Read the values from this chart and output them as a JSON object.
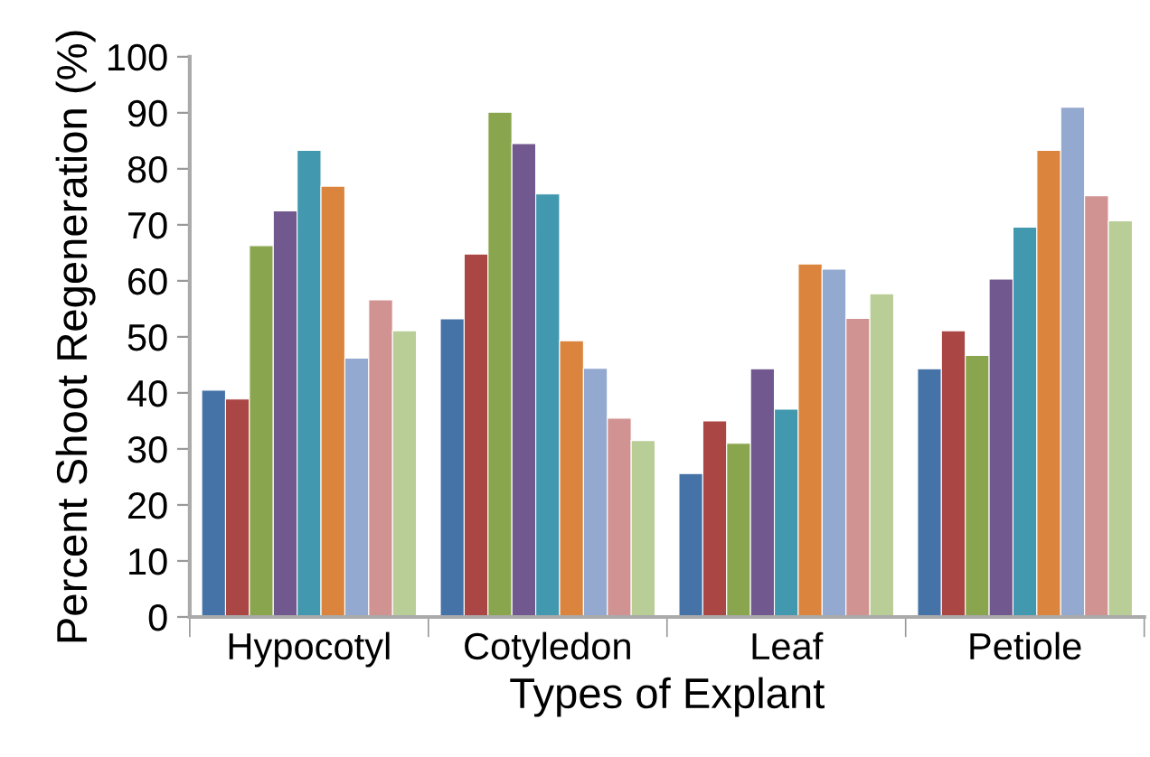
{
  "chart_data": {
    "type": "bar",
    "xlabel": "Types of Explant",
    "ylabel": "Percent Shoot Regeneration (%)",
    "categories": [
      "Hypocotyl",
      "Cotyledon",
      "Leaf",
      "Petiole"
    ],
    "series": [
      {
        "color": "#4572a7",
        "values": [
          40.5,
          53.2,
          25.6,
          44.3
        ]
      },
      {
        "color": "#aa4643",
        "values": [
          38.9,
          64.8,
          35.0,
          51.1
        ]
      },
      {
        "color": "#89a54e",
        "values": [
          66.3,
          90.1,
          31.0,
          46.7
        ]
      },
      {
        "color": "#71588f",
        "values": [
          72.5,
          84.5,
          44.3,
          60.3
        ]
      },
      {
        "color": "#4198af",
        "values": [
          83.3,
          75.5,
          37.1,
          69.6
        ]
      },
      {
        "color": "#db843d",
        "values": [
          76.9,
          49.3,
          63.0,
          83.3
        ]
      },
      {
        "color": "#93a9cf",
        "values": [
          46.2,
          44.4,
          62.1,
          91.0
        ]
      },
      {
        "color": "#d19392",
        "values": [
          56.6,
          35.5,
          53.3,
          75.2
        ]
      },
      {
        "color": "#b9cd96",
        "values": [
          51.1,
          31.5,
          57.7,
          70.7
        ]
      }
    ],
    "ylim": [
      0,
      100
    ],
    "yticks": [
      0,
      10,
      20,
      30,
      40,
      50,
      60,
      70,
      80,
      90,
      100
    ],
    "grid": false,
    "legend": false
  }
}
